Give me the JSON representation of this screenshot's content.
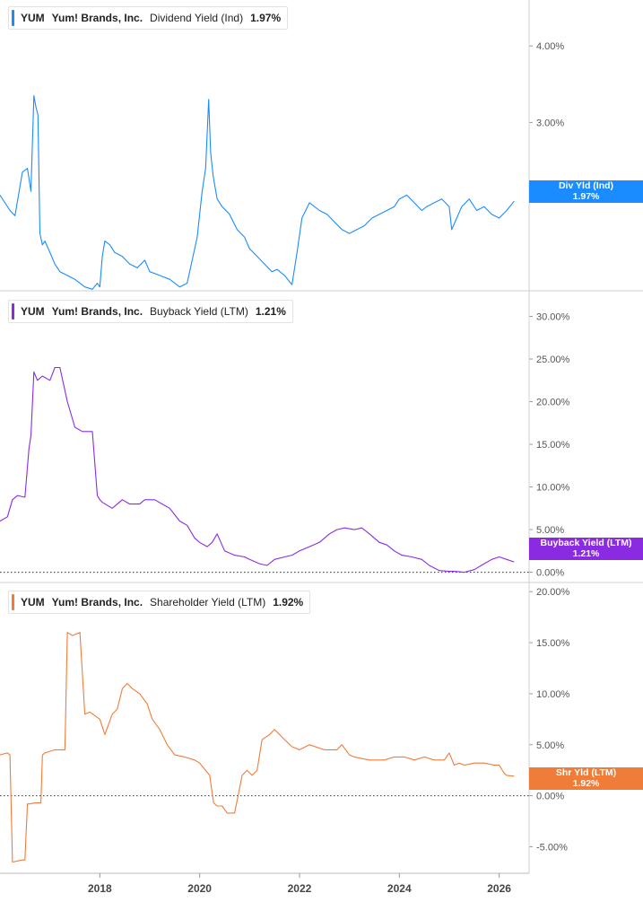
{
  "chart_data": [
    {
      "type": "line",
      "ticker": "YUM",
      "company": "Yum! Brands, Inc.",
      "metric": "Dividend Yield (Ind)",
      "current_value": "1.97%",
      "tag_label": "Div Yld (Ind)",
      "tag_value": "1.97%",
      "color": "#1a8cff",
      "ylim": [
        0.8,
        4.6
      ],
      "yticks": [
        {
          "v": 4.0,
          "label": "4.00%"
        },
        {
          "v": 3.0,
          "label": "3.00%"
        },
        {
          "v": 2.0,
          "label": "2.00%"
        }
      ],
      "x": [
        2016.0,
        2016.2,
        2016.3,
        2016.45,
        2016.55,
        2016.62,
        2016.68,
        2016.72,
        2016.76,
        2016.8,
        2016.85,
        2016.9,
        2017.0,
        2017.1,
        2017.2,
        2017.35,
        2017.5,
        2017.7,
        2017.85,
        2017.95,
        2018.0,
        2018.05,
        2018.1,
        2018.2,
        2018.3,
        2018.45,
        2018.6,
        2018.75,
        2018.9,
        2019.0,
        2019.2,
        2019.4,
        2019.6,
        2019.75,
        2019.85,
        2019.95,
        2020.05,
        2020.12,
        2020.18,
        2020.22,
        2020.27,
        2020.35,
        2020.45,
        2020.6,
        2020.75,
        2020.9,
        2021.0,
        2021.15,
        2021.3,
        2021.45,
        2021.55,
        2021.7,
        2021.85,
        2021.95,
        2022.05,
        2022.2,
        2022.4,
        2022.55,
        2022.7,
        2022.85,
        2023.0,
        2023.15,
        2023.3,
        2023.45,
        2023.6,
        2023.75,
        2023.9,
        2024.0,
        2024.15,
        2024.3,
        2024.45,
        2024.55,
        2024.7,
        2024.85,
        2025.0,
        2025.05,
        2025.15,
        2025.25,
        2025.4,
        2025.55,
        2025.7,
        2025.85,
        2026.0,
        2026.15,
        2026.3
      ],
      "values": [
        2.05,
        1.85,
        1.78,
        2.35,
        2.4,
        2.1,
        3.35,
        3.2,
        3.1,
        1.55,
        1.4,
        1.45,
        1.3,
        1.15,
        1.05,
        1.0,
        0.95,
        0.85,
        0.82,
        0.9,
        0.85,
        1.25,
        1.45,
        1.4,
        1.3,
        1.25,
        1.15,
        1.1,
        1.2,
        1.05,
        1.0,
        0.95,
        0.85,
        0.9,
        1.2,
        1.5,
        2.1,
        2.4,
        3.3,
        2.6,
        2.3,
        2.0,
        1.9,
        1.8,
        1.6,
        1.5,
        1.35,
        1.25,
        1.15,
        1.05,
        1.08,
        1.0,
        0.88,
        1.3,
        1.75,
        1.95,
        1.85,
        1.8,
        1.7,
        1.6,
        1.55,
        1.6,
        1.65,
        1.75,
        1.8,
        1.85,
        1.9,
        2.0,
        2.05,
        1.95,
        1.85,
        1.9,
        1.95,
        2.0,
        1.9,
        1.6,
        1.75,
        1.9,
        2.0,
        1.85,
        1.9,
        1.8,
        1.75,
        1.85,
        1.97
      ]
    },
    {
      "type": "line",
      "ticker": "YUM",
      "company": "Yum! Brands, Inc.",
      "metric": "Buyback Yield (LTM)",
      "current_value": "1.21%",
      "tag_label": "Buyback Yield (LTM)",
      "tag_value": "1.21%",
      "color": "#8a2be2",
      "ylim": [
        -1.2,
        33.0
      ],
      "yticks": [
        {
          "v": 30,
          "label": "30.00%"
        },
        {
          "v": 25,
          "label": "25.00%"
        },
        {
          "v": 20,
          "label": "20.00%"
        },
        {
          "v": 15,
          "label": "15.00%"
        },
        {
          "v": 10,
          "label": "10.00%"
        },
        {
          "v": 5,
          "label": "5.00%"
        },
        {
          "v": 0,
          "label": "0.00%"
        }
      ],
      "x": [
        2016.0,
        2016.15,
        2016.25,
        2016.35,
        2016.5,
        2016.58,
        2016.62,
        2016.68,
        2016.75,
        2016.85,
        2017.0,
        2017.1,
        2017.2,
        2017.35,
        2017.5,
        2017.65,
        2017.85,
        2017.95,
        2018.0,
        2018.05,
        2018.25,
        2018.45,
        2018.6,
        2018.8,
        2018.9,
        2019.1,
        2019.25,
        2019.4,
        2019.6,
        2019.75,
        2019.9,
        2020.0,
        2020.15,
        2020.25,
        2020.35,
        2020.5,
        2020.7,
        2020.9,
        2021.0,
        2021.2,
        2021.35,
        2021.5,
        2021.7,
        2021.85,
        2022.0,
        2022.2,
        2022.4,
        2022.6,
        2022.75,
        2022.9,
        2023.1,
        2023.25,
        2023.4,
        2023.6,
        2023.75,
        2023.9,
        2024.05,
        2024.25,
        2024.45,
        2024.6,
        2024.8,
        2025.0,
        2025.1,
        2025.3,
        2025.5,
        2025.7,
        2025.85,
        2026.0,
        2026.15,
        2026.3
      ],
      "values": [
        6.0,
        6.5,
        8.5,
        9.0,
        8.8,
        14.5,
        16.0,
        23.5,
        22.5,
        23.0,
        22.5,
        24.0,
        24.0,
        20.0,
        17.0,
        16.5,
        16.5,
        9.0,
        8.5,
        8.2,
        7.5,
        8.5,
        8.0,
        8.0,
        8.5,
        8.5,
        8.0,
        7.5,
        6.0,
        5.5,
        4.0,
        3.5,
        3.0,
        3.5,
        4.5,
        2.5,
        2.0,
        1.8,
        1.5,
        1.0,
        0.8,
        1.5,
        1.8,
        2.0,
        2.5,
        3.0,
        3.5,
        4.5,
        5.0,
        5.2,
        5.0,
        5.2,
        4.5,
        3.5,
        3.2,
        2.5,
        2.0,
        1.8,
        1.5,
        0.8,
        0.2,
        0.1,
        0.1,
        0.0,
        0.3,
        1.0,
        1.5,
        1.8,
        1.5,
        1.21
      ]
    },
    {
      "type": "line",
      "ticker": "YUM",
      "company": "Yum! Brands, Inc.",
      "metric": "Shareholder Yield (LTM)",
      "current_value": "1.92%",
      "tag_label": "Shr Yld (LTM)",
      "tag_value": "1.92%",
      "color": "#f07c3a",
      "ylim": [
        -7.6,
        20.9
      ],
      "yticks": [
        {
          "v": 20,
          "label": "20.00%"
        },
        {
          "v": 15,
          "label": "15.00%"
        },
        {
          "v": 10,
          "label": "10.00%"
        },
        {
          "v": 5,
          "label": "5.00%"
        },
        {
          "v": 0,
          "label": "0.00%"
        },
        {
          "v": -5,
          "label": "-5.00%"
        }
      ],
      "x": [
        2016.0,
        2016.15,
        2016.2,
        2016.25,
        2016.45,
        2016.5,
        2016.55,
        2016.6,
        2016.7,
        2016.82,
        2016.85,
        2016.9,
        2017.1,
        2017.3,
        2017.35,
        2017.45,
        2017.6,
        2017.7,
        2017.8,
        2018.0,
        2018.1,
        2018.25,
        2018.35,
        2018.45,
        2018.55,
        2018.65,
        2018.8,
        2018.95,
        2019.05,
        2019.2,
        2019.35,
        2019.5,
        2019.7,
        2019.9,
        2020.0,
        2020.2,
        2020.28,
        2020.35,
        2020.45,
        2020.55,
        2020.7,
        2020.85,
        2020.95,
        2021.05,
        2021.15,
        2021.25,
        2021.4,
        2021.5,
        2021.7,
        2021.85,
        2022.0,
        2022.2,
        2022.5,
        2022.75,
        2022.85,
        2023.0,
        2023.1,
        2023.4,
        2023.7,
        2023.9,
        2024.1,
        2024.3,
        2024.5,
        2024.7,
        2024.9,
        2025.0,
        2025.1,
        2025.2,
        2025.3,
        2025.5,
        2025.7,
        2025.9,
        2026.0,
        2026.1,
        2026.15,
        2026.3
      ],
      "values": [
        4.0,
        4.2,
        4.0,
        -6.5,
        -6.3,
        -6.3,
        -0.8,
        -0.8,
        -0.7,
        -0.7,
        4.0,
        4.2,
        4.5,
        4.5,
        16.0,
        15.7,
        16.0,
        8.0,
        8.2,
        7.5,
        6.0,
        8.0,
        8.5,
        10.5,
        11.0,
        10.5,
        10.0,
        9.0,
        7.5,
        6.5,
        5.0,
        4.0,
        3.8,
        3.5,
        3.2,
        2.0,
        -0.7,
        -1.0,
        -1.0,
        -1.7,
        -1.7,
        2.0,
        2.5,
        2.0,
        2.5,
        5.5,
        6.0,
        6.5,
        5.5,
        4.8,
        4.5,
        5.0,
        4.5,
        4.5,
        5.0,
        4.0,
        3.8,
        3.5,
        3.5,
        3.8,
        3.8,
        3.5,
        3.8,
        3.5,
        3.5,
        4.2,
        3.0,
        3.2,
        3.0,
        3.2,
        3.2,
        3.0,
        3.0,
        2.2,
        2.0,
        1.92
      ]
    }
  ],
  "xaxis": {
    "ticks": [
      {
        "v": 2018,
        "label": "2018"
      },
      {
        "v": 2020,
        "label": "2020"
      },
      {
        "v": 2022,
        "label": "2022"
      },
      {
        "v": 2024,
        "label": "2024"
      },
      {
        "v": 2026,
        "label": "2026"
      }
    ],
    "range": [
      2016.0,
      2026.6
    ]
  },
  "grid": false
}
